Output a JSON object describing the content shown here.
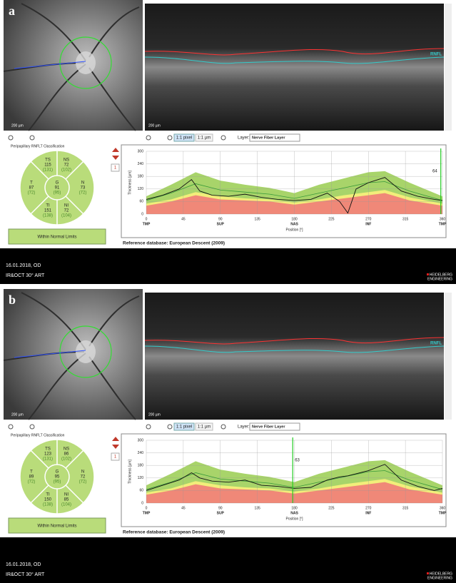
{
  "panels": [
    {
      "label": "a",
      "fundus": {
        "scale": "200 µm"
      },
      "oct": {
        "scale": "200 µm",
        "layer_tag": "RNFL"
      },
      "toolbar": {
        "zoom_pixel": "1:1 pixel",
        "zoom_um": "1:1 µm",
        "layer_label": "Layer:",
        "layer": "Nerve Fiber Layer"
      },
      "classification": {
        "title": "Peripapillary RNFLT Classification",
        "sectors": [
          {
            "name": "TS",
            "value": 115,
            "normal": "(131)"
          },
          {
            "name": "NS",
            "value": 72,
            "normal": "(102)"
          },
          {
            "name": "T",
            "value": 87,
            "normal": "(72)"
          },
          {
            "name": "G",
            "value": 91,
            "normal": "(95)"
          },
          {
            "name": "N",
            "value": 73,
            "normal": "(72)"
          },
          {
            "name": "TI",
            "value": 151,
            "normal": "(138)"
          },
          {
            "name": "NI",
            "value": 72,
            "normal": "(104)"
          }
        ],
        "result": "Within Normal Limits"
      },
      "scan_index": "1",
      "chart_data": {
        "type": "line",
        "ylabel": "Thickness [µm]",
        "xlabel": "Position [°]",
        "xlim": [
          0,
          360
        ],
        "ylim": [
          0,
          300
        ],
        "xticks": [
          0,
          45,
          90,
          135,
          180,
          225,
          270,
          315,
          360
        ],
        "yticks": [
          0,
          60,
          120,
          180,
          240,
          300
        ],
        "x_regions": [
          {
            "value": 0,
            "label": "TMP"
          },
          {
            "value": 90,
            "label": "SUP"
          },
          {
            "value": 180,
            "label": "NAS"
          },
          {
            "value": 270,
            "label": "INF"
          },
          {
            "value": 360,
            "label": "TMP"
          }
        ],
        "marker": {
          "x": 358,
          "value": 64,
          "color": "#22cc22"
        },
        "bands": {
          "x": [
            0,
            30,
            60,
            90,
            120,
            150,
            180,
            210,
            240,
            270,
            290,
            320,
            360
          ],
          "green": [
            85,
            140,
            200,
            160,
            140,
            125,
            100,
            140,
            170,
            200,
            205,
            150,
            85
          ],
          "yellow": [
            50,
            70,
            105,
            85,
            75,
            70,
            55,
            70,
            90,
            105,
            115,
            80,
            50
          ],
          "red": [
            40,
            60,
            90,
            70,
            65,
            60,
            45,
            60,
            75,
            90,
            100,
            65,
            40
          ],
          "mean": [
            65,
            100,
            145,
            115,
            105,
            95,
            75,
            100,
            125,
            150,
            155,
            110,
            65
          ],
          "colors": {
            "green": "#a8d46a",
            "yellow": "#f2ee7a",
            "red": "#f08878",
            "mean": "#3a9a3a"
          }
        },
        "x": [
          0,
          20,
          40,
          55,
          65,
          80,
          100,
          120,
          140,
          160,
          180,
          200,
          220,
          235,
          245,
          255,
          270,
          290,
          310,
          330,
          350,
          360
        ],
        "measured": {
          "color": "#111111",
          "values": [
            70,
            90,
            120,
            165,
            110,
            90,
            85,
            95,
            80,
            70,
            65,
            70,
            100,
            60,
            5,
            120,
            150,
            175,
            110,
            85,
            70,
            65
          ]
        }
      },
      "reference": "Reference database: European Descent (2009)",
      "footer": {
        "date": "16.01.2018, OD",
        "mode": "IR&OCT 30° ART",
        "brand_top": "HEIDELBERG",
        "brand_bottom": "ENGINEERING"
      }
    },
    {
      "label": "b",
      "fundus": {
        "scale": "200 µm"
      },
      "oct": {
        "scale": "200 µm",
        "layer_tag": "RNFL"
      },
      "toolbar": {
        "zoom_pixel": "1:1 pixel",
        "zoom_um": "1:1 µm",
        "layer_label": "Layer:",
        "layer": "Nerve Fiber Layer"
      },
      "classification": {
        "title": "Peripapillary RNFLT Classification",
        "sectors": [
          {
            "name": "TS",
            "value": 123,
            "normal": "(131)"
          },
          {
            "name": "NS",
            "value": 86,
            "normal": "(102)"
          },
          {
            "name": "T",
            "value": 89,
            "normal": "(72)"
          },
          {
            "name": "G",
            "value": 95,
            "normal": "(95)"
          },
          {
            "name": "N",
            "value": 72,
            "normal": "(72)"
          },
          {
            "name": "TI",
            "value": 150,
            "normal": "(138)"
          },
          {
            "name": "NI",
            "value": 85,
            "normal": "(104)"
          }
        ],
        "result": "Within Normal Limits"
      },
      "scan_index": "1",
      "chart_data": {
        "type": "line",
        "ylabel": "Thickness [µm]",
        "xlabel": "Position [°]",
        "xlim": [
          0,
          360
        ],
        "ylim": [
          0,
          300
        ],
        "xticks": [
          0,
          45,
          90,
          135,
          180,
          225,
          270,
          315,
          360
        ],
        "yticks": [
          0,
          60,
          120,
          180,
          240,
          300
        ],
        "x_regions": [
          {
            "value": 0,
            "label": "TMP"
          },
          {
            "value": 90,
            "label": "SUP"
          },
          {
            "value": 180,
            "label": "NAS"
          },
          {
            "value": 270,
            "label": "INF"
          },
          {
            "value": 360,
            "label": "TMP"
          }
        ],
        "marker": {
          "x": 178,
          "value": 63,
          "color": "#22cc22"
        },
        "bands": {
          "x": [
            0,
            30,
            60,
            90,
            120,
            150,
            180,
            210,
            240,
            270,
            290,
            320,
            360
          ],
          "green": [
            85,
            140,
            200,
            160,
            140,
            125,
            100,
            140,
            170,
            200,
            205,
            150,
            85
          ],
          "yellow": [
            50,
            70,
            105,
            85,
            75,
            70,
            55,
            70,
            90,
            105,
            115,
            80,
            50
          ],
          "red": [
            40,
            60,
            90,
            70,
            65,
            60,
            45,
            60,
            75,
            90,
            100,
            65,
            40
          ],
          "mean": [
            65,
            100,
            145,
            115,
            105,
            95,
            75,
            100,
            125,
            150,
            155,
            110,
            65
          ],
          "colors": {
            "green": "#a8d46a",
            "yellow": "#f2ee7a",
            "red": "#f08878",
            "mean": "#3a9a3a"
          }
        },
        "x": [
          0,
          20,
          40,
          55,
          65,
          80,
          100,
          120,
          140,
          160,
          180,
          200,
          220,
          235,
          245,
          255,
          270,
          290,
          310,
          330,
          350,
          360
        ],
        "measured": {
          "color": "#111111",
          "values": [
            60,
            85,
            110,
            145,
            120,
            105,
            100,
            110,
            85,
            80,
            70,
            75,
            110,
            125,
            130,
            140,
            155,
            185,
            110,
            80,
            60,
            70
          ]
        }
      },
      "reference": "Reference database: European Descent (2009)",
      "footer": {
        "date": "16.01.2018, OD",
        "mode": "IR&OCT 30° ART",
        "brand_top": "HEIDELBERG",
        "brand_bottom": "ENGINEERING"
      }
    }
  ]
}
